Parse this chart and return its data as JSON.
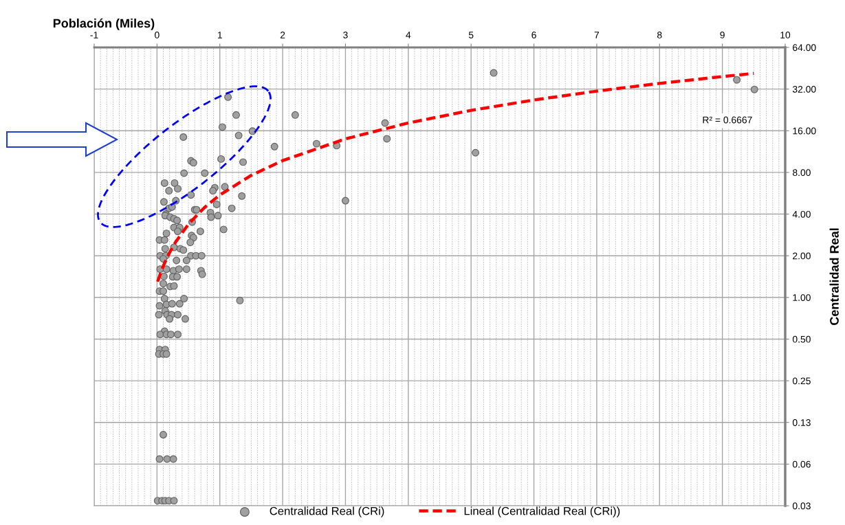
{
  "chart_data": {
    "type": "scatter",
    "xlabel": "Población (Miles)",
    "ylabel": "Centralidad Real",
    "xlim": [
      -1,
      10
    ],
    "xticks": [
      -1,
      0,
      1,
      2,
      3,
      4,
      5,
      6,
      7,
      8,
      9,
      10
    ],
    "ylim": [
      0.03125,
      64
    ],
    "log": "y",
    "yticks": [
      {
        "value": 0.03125,
        "label": "0.03"
      },
      {
        "value": 0.0625,
        "label": "0.06"
      },
      {
        "value": 0.125,
        "label": "0.13"
      },
      {
        "value": 0.25,
        "label": "0.25"
      },
      {
        "value": 0.5,
        "label": "0.50"
      },
      {
        "value": 1,
        "label": "1.00"
      },
      {
        "value": 2,
        "label": "2.00"
      },
      {
        "value": 4,
        "label": "4.00"
      },
      {
        "value": 8,
        "label": "8.00"
      },
      {
        "value": 16,
        "label": "16.00"
      },
      {
        "value": 32,
        "label": "32.00"
      },
      {
        "value": 64,
        "label": "64.00"
      }
    ],
    "grid": true,
    "legend": "bottom",
    "annotations": [
      "R² = 0.6667"
    ],
    "series": [
      {
        "name": "Centralidad Real (CRi)",
        "color": "#a0a0a0",
        "marker": "circle",
        "x": [
          1.13,
          1.26,
          1.04,
          1.52,
          1.3,
          0.42,
          1.87,
          1.02,
          0.54,
          0.58,
          1.37,
          0.43,
          0.76,
          0.12,
          0.28,
          0.33,
          0.19,
          0.92,
          1.08,
          0.89,
          0.54,
          1.35,
          0.11,
          0.3,
          0.95,
          0.19,
          0.24,
          0.6,
          0.63,
          1.19,
          0.14,
          0.13,
          0.85,
          0.86,
          0.97,
          0.21,
          0.27,
          0.32,
          0.56,
          0.27,
          0.36,
          0.33,
          1.06,
          0.15,
          0.69,
          0.04,
          0.12,
          0.55,
          0.58,
          0.53,
          0.13,
          0.27,
          0.37,
          0.42,
          0.05,
          0.14,
          0.1,
          0.54,
          0.62,
          0.71,
          0.31,
          0.47,
          0.05,
          0.15,
          0.26,
          0.35,
          0.47,
          0.7,
          0.72,
          0.11,
          0.25,
          0.32,
          0.1,
          0.21,
          0.27,
          0.04,
          0.1,
          0.12,
          0.43,
          1.32,
          0.04,
          0.15,
          0.24,
          0.36,
          0.13,
          0.03,
          0.16,
          0.23,
          0.33,
          0.2,
          0.45,
          0.12,
          0.05,
          0.15,
          0.22,
          0.33,
          0.04,
          0.13,
          0.03,
          0.1,
          0.15,
          0.1,
          0.04,
          0.16,
          0.26,
          0.01,
          0.08,
          0.13,
          0.19,
          0.27,
          2.2,
          2.54,
          2.86,
          3.63,
          3.66,
          3.0,
          5.07,
          5.36,
          9.23,
          9.51
        ],
        "values": [
          28.0,
          20.8,
          17.0,
          15.9,
          14.8,
          14.4,
          12.3,
          10.0,
          9.7,
          9.4,
          9.5,
          7.9,
          7.9,
          6.7,
          6.7,
          6.1,
          5.9,
          6.2,
          6.3,
          5.9,
          5.5,
          5.4,
          4.9,
          5.0,
          4.7,
          4.4,
          4.5,
          4.3,
          4.3,
          4.4,
          4.0,
          3.9,
          4.1,
          3.8,
          3.9,
          3.8,
          3.7,
          3.6,
          3.5,
          3.2,
          3.2,
          3.0,
          3.1,
          2.9,
          3.0,
          2.6,
          2.6,
          2.8,
          2.7,
          2.5,
          2.25,
          2.3,
          2.25,
          2.2,
          2.0,
          2.0,
          1.9,
          2.0,
          2.0,
          2.0,
          1.85,
          1.85,
          1.6,
          1.6,
          1.56,
          1.6,
          1.6,
          1.56,
          1.47,
          1.42,
          1.41,
          1.41,
          1.26,
          1.2,
          1.21,
          1.11,
          1.11,
          0.98,
          0.98,
          0.95,
          0.87,
          0.89,
          0.9,
          0.9,
          0.8,
          0.75,
          0.75,
          0.75,
          0.75,
          0.7,
          0.7,
          0.57,
          0.54,
          0.54,
          0.54,
          0.54,
          0.42,
          0.42,
          0.39,
          0.39,
          0.39,
          0.102,
          0.068,
          0.068,
          0.068,
          0.034,
          0.034,
          0.034,
          0.034,
          0.034,
          20.8,
          12.9,
          12.5,
          18.2,
          14.0,
          5.0,
          11.1,
          41.9,
          37.3,
          31.8
        ]
      },
      {
        "name": "Lineal (Centralidad Real (CRi))",
        "type": "line",
        "color": "#ff0000",
        "line_style": "dashed",
        "marker": "none",
        "x": [
          0.01,
          0.05,
          0.1,
          0.2,
          0.3,
          0.5,
          0.75,
          1,
          1.5,
          2,
          3,
          4,
          5,
          6,
          7,
          8,
          9,
          9.5
        ],
        "values": [
          1.3,
          1.47,
          1.69,
          2.11,
          2.53,
          3.38,
          4.44,
          5.5,
          7.62,
          9.74,
          13.98,
          18.22,
          22.46,
          26.7,
          30.94,
          35.18,
          39.42,
          41.54
        ]
      }
    ]
  }
}
